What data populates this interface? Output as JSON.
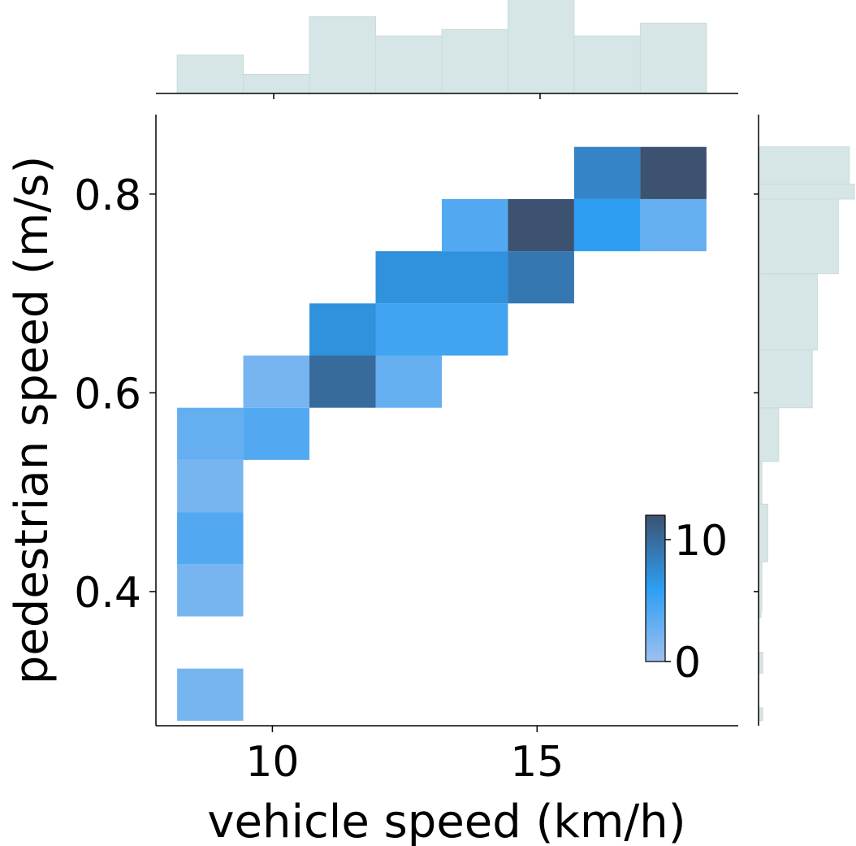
{
  "chart_data": {
    "type": "heatmap",
    "xlabel": "vehicle speed (km/h)",
    "ylabel": "pedestrian speed (m/s)",
    "xlim": [
      7.8,
      18.8
    ],
    "ylim": [
      0.265,
      0.88
    ],
    "x_ticks": [
      {
        "value": 10,
        "label": "10"
      },
      {
        "value": 15,
        "label": "15"
      }
    ],
    "y_ticks": [
      {
        "value": 0.4,
        "label": "0.4"
      },
      {
        "value": 0.6,
        "label": "0.6"
      },
      {
        "value": 0.8,
        "label": "0.8"
      }
    ],
    "x_bin_edges": [
      8.2,
      9.45,
      10.7,
      11.95,
      13.2,
      14.45,
      15.7,
      16.95,
      18.2
    ],
    "y_bin_edges": [
      0.27,
      0.3225,
      0.375,
      0.4275,
      0.48,
      0.5325,
      0.585,
      0.6375,
      0.69,
      0.7425,
      0.795,
      0.8475
    ],
    "cells": [
      {
        "xbin": 0,
        "ybin": 0,
        "count": 2
      },
      {
        "xbin": 0,
        "ybin": 2,
        "count": 2
      },
      {
        "xbin": 0,
        "ybin": 3,
        "count": 4
      },
      {
        "xbin": 0,
        "ybin": 4,
        "count": 2
      },
      {
        "xbin": 0,
        "ybin": 5,
        "count": 3
      },
      {
        "xbin": 1,
        "ybin": 5,
        "count": 4
      },
      {
        "xbin": 1,
        "ybin": 6,
        "count": 2
      },
      {
        "xbin": 2,
        "ybin": 6,
        "count": 10
      },
      {
        "xbin": 2,
        "ybin": 7,
        "count": 7
      },
      {
        "xbin": 3,
        "ybin": 6,
        "count": 3
      },
      {
        "xbin": 3,
        "ybin": 7,
        "count": 5
      },
      {
        "xbin": 3,
        "ybin": 8,
        "count": 7
      },
      {
        "xbin": 4,
        "ybin": 7,
        "count": 5
      },
      {
        "xbin": 4,
        "ybin": 8,
        "count": 7
      },
      {
        "xbin": 4,
        "ybin": 9,
        "count": 4
      },
      {
        "xbin": 5,
        "ybin": 8,
        "count": 9
      },
      {
        "xbin": 5,
        "ybin": 9,
        "count": 12
      },
      {
        "xbin": 6,
        "ybin": 9,
        "count": 6
      },
      {
        "xbin": 6,
        "ybin": 10,
        "count": 8
      },
      {
        "xbin": 7,
        "ybin": 9,
        "count": 3
      },
      {
        "xbin": 7,
        "ybin": 10,
        "count": 12
      }
    ],
    "x_marginal": {
      "bin_edges": [
        8.2,
        9.45,
        10.7,
        11.95,
        13.2,
        14.45,
        15.7,
        16.95,
        18.2
      ],
      "values": [
        6,
        3,
        12,
        9,
        10,
        15,
        9,
        11
      ]
    },
    "y_marginal": {
      "bin_edges": [
        0.27,
        0.283,
        0.318,
        0.339,
        0.374,
        0.381,
        0.43,
        0.488,
        0.531,
        0.585,
        0.643,
        0.72,
        0.795,
        0.81,
        0.8475
      ],
      "values": [
        0.5,
        0.0,
        0.5,
        0.0,
        0.3,
        0.4,
        1.1,
        0.4,
        2.4,
        6.4,
        7.0,
        9.5,
        11.4,
        10.8
      ]
    },
    "colorbar": {
      "min": 0,
      "max": 12,
      "ticks": [
        {
          "value": 0,
          "label": "0"
        },
        {
          "value": 10,
          "label": "10"
        }
      ],
      "placement": "lower-right inside plot"
    },
    "colors": {
      "low": "#9cc0f0",
      "mid": "#2e9ef2",
      "high": "#3c5270",
      "marginal_fill": "#d6e5e5",
      "marginal_edge": "#c8dbdb",
      "axis": "#000000"
    },
    "grid": false
  }
}
